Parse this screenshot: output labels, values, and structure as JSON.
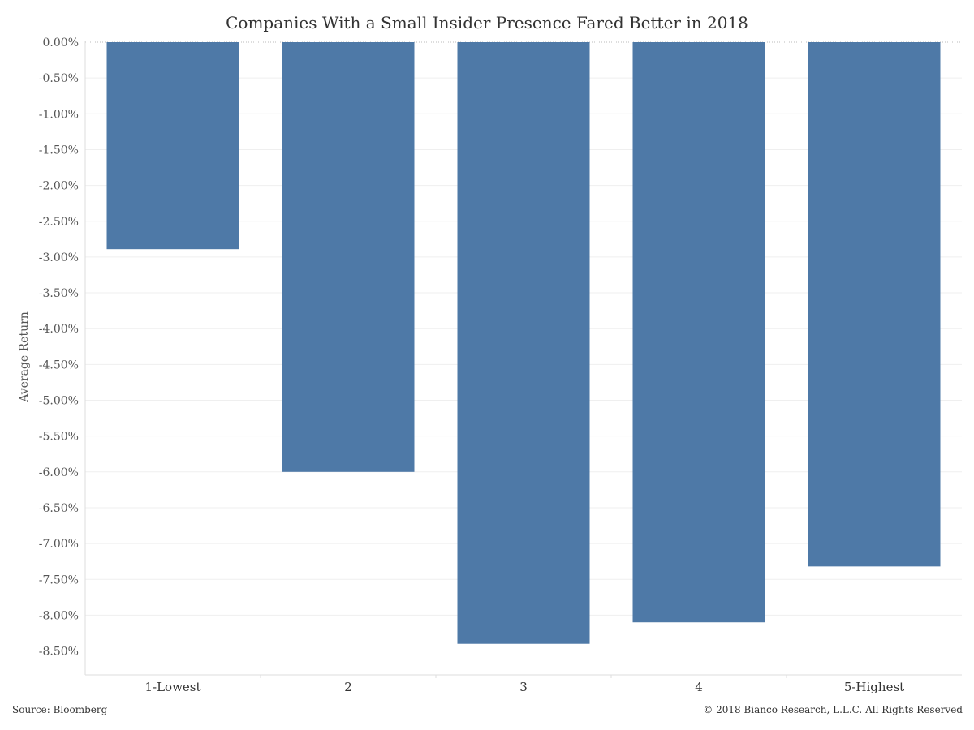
{
  "chart_data": {
    "type": "bar",
    "title": "Companies With a Small Insider Presence Fared Better in 2018",
    "xlabel": "",
    "ylabel": "Average Return",
    "categories": [
      "1-Lowest",
      "2",
      "3",
      "4",
      "5-Highest"
    ],
    "values": [
      -2.89,
      -6.0,
      -8.4,
      -8.1,
      -7.32
    ],
    "ylim": [
      -8.9,
      0.0
    ],
    "yticks": [
      0.0,
      -0.5,
      -1.0,
      -1.5,
      -2.0,
      -2.5,
      -3.0,
      -3.5,
      -4.0,
      -4.5,
      -5.0,
      -5.5,
      -6.0,
      -6.5,
      -7.0,
      -7.5,
      -8.0,
      -8.5
    ],
    "ytick_labels": [
      "0.00%",
      "-0.50%",
      "-1.00%",
      "-1.50%",
      "-2.00%",
      "-2.50%",
      "-3.00%",
      "-3.50%",
      "-4.00%",
      "-4.50%",
      "-5.00%",
      "-5.50%",
      "-6.00%",
      "-6.50%",
      "-7.00%",
      "-7.50%",
      "-8.00%",
      "-8.50%"
    ],
    "bar_color": "#4e79a7",
    "gridlines": true,
    "legend": "none"
  },
  "footer": {
    "source": "Source: Bloomberg",
    "copyright": "© 2018 Bianco Research, L.L.C. All Rights Reserved"
  }
}
